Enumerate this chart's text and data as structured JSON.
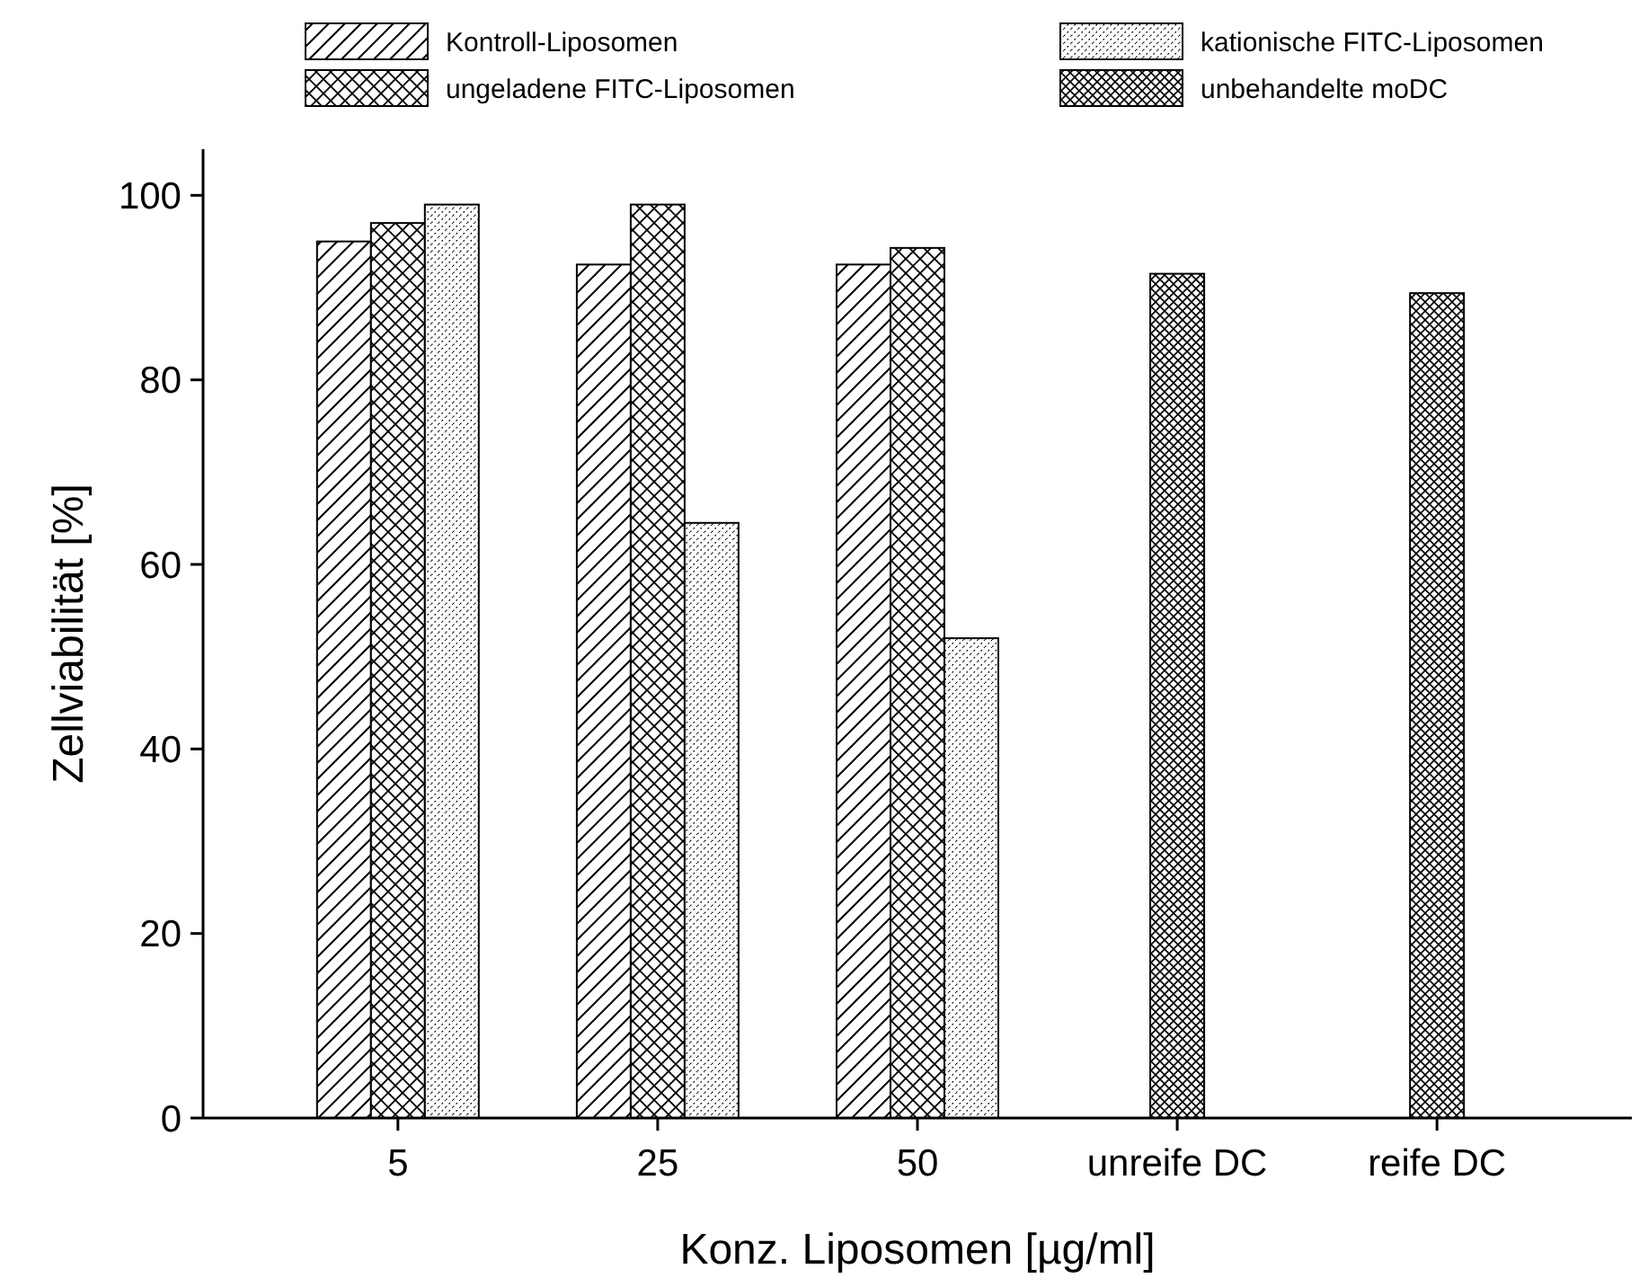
{
  "chart_data": {
    "type": "bar",
    "xlabel": "Konz. Liposomen [µg/ml]",
    "ylabel": "Zellviabilität [%]",
    "categories": [
      "5",
      "25",
      "50",
      "unreife DC",
      "reife DC"
    ],
    "series": [
      {
        "name": "Kontroll-Liposomen",
        "color": "#000000",
        "values": [
          95,
          92.5,
          92.5,
          null,
          null
        ]
      },
      {
        "name": "ungeladene FITC-Liposomen",
        "color": "#000000",
        "values": [
          97,
          99,
          94.3,
          null,
          null
        ]
      },
      {
        "name": "kationische FITC-Liposomen",
        "color": "#000000",
        "values": [
          99,
          64.5,
          52,
          null,
          null
        ]
      },
      {
        "name": "unbehandelte moDC",
        "color": "#000000",
        "values": [
          null,
          null,
          null,
          91.5,
          89.4
        ]
      }
    ],
    "ylim": [
      0,
      105
    ],
    "yticks": [
      0,
      20,
      40,
      60,
      80,
      100
    ],
    "grid": false,
    "legend": "top"
  }
}
